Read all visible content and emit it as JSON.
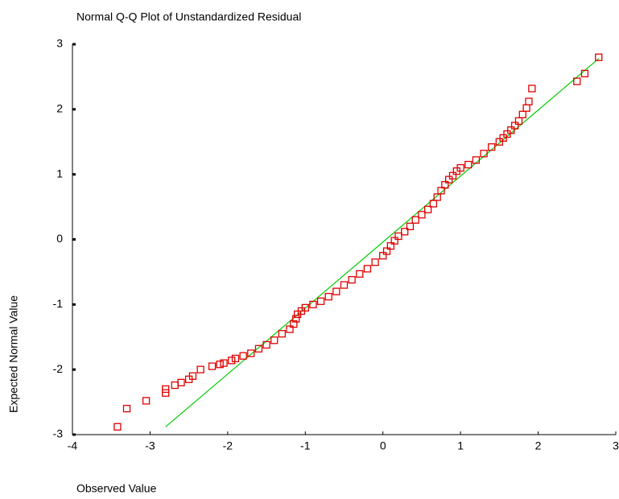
{
  "chart_data": {
    "type": "scatter",
    "title": "Normal Q-Q Plot of Unstandardized Residual",
    "x_label": "Observed Value",
    "y_label": "Expected Normal Value",
    "xlim": [
      -4,
      3
    ],
    "xticks": [
      -4,
      -3,
      -2,
      -1,
      0,
      1,
      2,
      3
    ],
    "ylim": [
      -3,
      3
    ],
    "yticks": [
      -3,
      -2,
      -1,
      0,
      1,
      2,
      3
    ],
    "series": [
      {
        "color": "#e00000",
        "x": [
          -3.42,
          -3.3,
          -3.05,
          -2.8,
          -2.8,
          -2.68,
          -2.6,
          -2.5,
          -2.45,
          -2.35,
          -2.2,
          -2.1,
          -2.05,
          -1.95,
          -1.9,
          -1.8,
          -1.7,
          -1.6,
          -1.5,
          -1.4,
          -1.3,
          -1.2,
          -1.15,
          -1.12,
          -1.1,
          -1.05,
          -1.0,
          -0.9,
          -0.8,
          -0.7,
          -0.6,
          -0.5,
          -0.4,
          -0.3,
          -0.2,
          -0.1,
          0.0,
          0.05,
          0.1,
          0.15,
          0.2,
          0.28,
          0.35,
          0.42,
          0.5,
          0.58,
          0.65,
          0.7,
          0.75,
          0.8,
          0.85,
          0.9,
          0.95,
          1.0,
          1.1,
          1.2,
          1.3,
          1.4,
          1.5,
          1.55,
          1.6,
          1.65,
          1.7,
          1.75,
          1.8,
          1.85,
          1.88,
          1.92,
          2.5,
          2.6,
          2.78
        ],
        "values": [
          -2.88,
          -2.6,
          -2.48,
          -2.36,
          -2.3,
          -2.24,
          -2.2,
          -2.15,
          -2.1,
          -2.0,
          -1.95,
          -1.92,
          -1.9,
          -1.86,
          -1.83,
          -1.79,
          -1.75,
          -1.68,
          -1.62,
          -1.55,
          -1.45,
          -1.38,
          -1.3,
          -1.22,
          -1.15,
          -1.1,
          -1.05,
          -1.0,
          -0.95,
          -0.88,
          -0.8,
          -0.7,
          -0.62,
          -0.53,
          -0.45,
          -0.35,
          -0.25,
          -0.18,
          -0.1,
          -0.02,
          0.05,
          0.12,
          0.2,
          0.3,
          0.38,
          0.46,
          0.55,
          0.65,
          0.75,
          0.84,
          0.92,
          0.98,
          1.05,
          1.1,
          1.15,
          1.22,
          1.32,
          1.42,
          1.5,
          1.56,
          1.62,
          1.68,
          1.75,
          1.82,
          1.92,
          2.02,
          2.12,
          2.32,
          2.43,
          2.55,
          2.8
        ]
      }
    ],
    "reference_line": {
      "color": "#00cc00",
      "x": [
        -2.8,
        2.78
      ],
      "y": [
        -2.88,
        2.78
      ]
    }
  }
}
